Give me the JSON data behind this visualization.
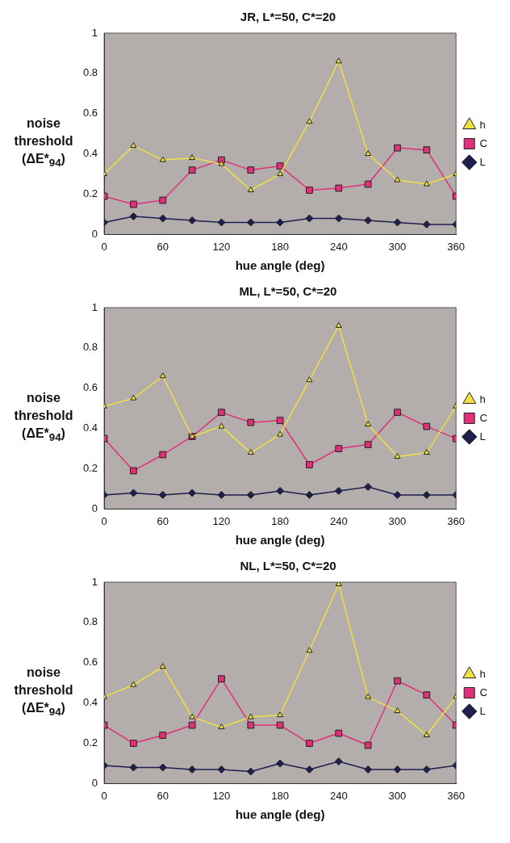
{
  "chart_data": [
    {
      "type": "line",
      "title": "JR, L*=50, C*=20",
      "xlabel": "hue angle (deg)",
      "ylabel": "noise threshold (ΔE*$_{94}$)",
      "x": [
        0,
        30,
        60,
        90,
        120,
        150,
        180,
        210,
        240,
        270,
        300,
        330,
        360
      ],
      "xlim": [
        0,
        360
      ],
      "xticks": [
        0,
        60,
        120,
        180,
        240,
        300,
        360
      ],
      "ylim": [
        0,
        1
      ],
      "yticks": [
        0,
        0.2,
        0.4,
        0.6,
        0.8,
        1
      ],
      "grid": false,
      "legend": "right",
      "series": [
        {
          "name": "h",
          "color": "#f0e040",
          "marker": "triangle",
          "values": [
            0.3,
            0.44,
            0.37,
            0.38,
            0.35,
            0.22,
            0.3,
            0.56,
            0.86,
            0.4,
            0.27,
            0.25,
            0.3
          ]
        },
        {
          "name": "C",
          "color": "#e0307a",
          "marker": "square",
          "values": [
            0.19,
            0.15,
            0.17,
            0.32,
            0.37,
            0.32,
            0.34,
            0.22,
            0.23,
            0.25,
            0.43,
            0.42,
            0.19
          ]
        },
        {
          "name": "L",
          "color": "#1f1f4f",
          "marker": "diamond",
          "values": [
            0.06,
            0.09,
            0.08,
            0.07,
            0.06,
            0.06,
            0.06,
            0.08,
            0.08,
            0.07,
            0.06,
            0.05,
            0.05
          ]
        }
      ]
    },
    {
      "type": "line",
      "title": "ML, L*=50, C*=20",
      "xlabel": "hue angle (deg)",
      "ylabel": "noise threshold (ΔE*$_{94}$)",
      "x": [
        0,
        30,
        60,
        90,
        120,
        150,
        180,
        210,
        240,
        270,
        300,
        330,
        360
      ],
      "xlim": [
        0,
        360
      ],
      "xticks": [
        0,
        60,
        120,
        180,
        240,
        300,
        360
      ],
      "ylim": [
        0,
        1
      ],
      "yticks": [
        0,
        0.2,
        0.4,
        0.6,
        0.8,
        1
      ],
      "grid": false,
      "legend": "right",
      "series": [
        {
          "name": "h",
          "color": "#f0e040",
          "marker": "triangle",
          "values": [
            0.51,
            0.55,
            0.66,
            0.36,
            0.41,
            0.28,
            0.37,
            0.64,
            0.91,
            0.42,
            0.26,
            0.28,
            0.51
          ]
        },
        {
          "name": "C",
          "color": "#e0307a",
          "marker": "square",
          "values": [
            0.35,
            0.19,
            0.27,
            0.36,
            0.48,
            0.43,
            0.44,
            0.22,
            0.3,
            0.32,
            0.48,
            0.41,
            0.35
          ]
        },
        {
          "name": "L",
          "color": "#1f1f4f",
          "marker": "diamond",
          "values": [
            0.07,
            0.08,
            0.07,
            0.08,
            0.07,
            0.07,
            0.09,
            0.07,
            0.09,
            0.11,
            0.07,
            0.07,
            0.07
          ]
        }
      ]
    },
    {
      "type": "line",
      "title": "NL, L*=50, C*=20",
      "xlabel": "hue angle (deg)",
      "ylabel": "noise threshold (ΔE*$_{94}$)",
      "x": [
        0,
        30,
        60,
        90,
        120,
        150,
        180,
        210,
        240,
        270,
        300,
        330,
        360
      ],
      "xlim": [
        0,
        360
      ],
      "xticks": [
        0,
        60,
        120,
        180,
        240,
        300,
        360
      ],
      "ylim": [
        0,
        1
      ],
      "yticks": [
        0,
        0.2,
        0.4,
        0.6,
        0.8,
        1
      ],
      "grid": false,
      "legend": "right",
      "series": [
        {
          "name": "h",
          "color": "#f0e040",
          "marker": "triangle",
          "values": [
            0.43,
            0.49,
            0.58,
            0.33,
            0.28,
            0.33,
            0.34,
            0.66,
            0.99,
            0.43,
            0.36,
            0.24,
            0.43
          ]
        },
        {
          "name": "C",
          "color": "#e0307a",
          "marker": "square",
          "values": [
            0.29,
            0.2,
            0.24,
            0.29,
            0.52,
            0.29,
            0.29,
            0.2,
            0.25,
            0.19,
            0.51,
            0.44,
            0.29
          ]
        },
        {
          "name": "L",
          "color": "#1f1f4f",
          "marker": "diamond",
          "values": [
            0.09,
            0.08,
            0.08,
            0.07,
            0.07,
            0.06,
            0.1,
            0.07,
            0.11,
            0.07,
            0.07,
            0.07,
            0.09
          ]
        }
      ]
    }
  ]
}
